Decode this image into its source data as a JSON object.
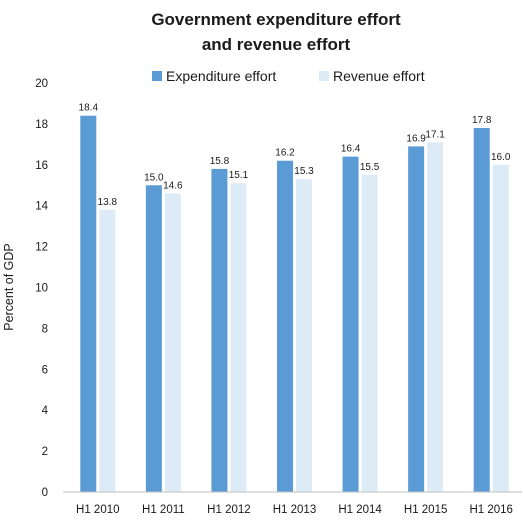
{
  "chart_data": {
    "type": "bar",
    "title_lines": [
      "Government expenditure effort",
      "and revenue effort"
    ],
    "xlabel": "",
    "ylabel": "Percent of GDP",
    "ylim": [
      0,
      20
    ],
    "y_ticks": [
      0,
      2,
      4,
      6,
      8,
      10,
      12,
      14,
      16,
      18,
      20
    ],
    "grid": false,
    "legend_position": "top-center",
    "categories": [
      "H1 2010",
      "H1 2011",
      "H1 2012",
      "H1 2013",
      "H1 2014",
      "H1 2015",
      "H1 2016"
    ],
    "series": [
      {
        "name": "Expenditure effort",
        "color": "#5b9bd5",
        "values": [
          18.4,
          15.0,
          15.8,
          16.2,
          16.4,
          16.9,
          17.8
        ],
        "labels": [
          "18.4",
          "15.0",
          "15.8",
          "16.2",
          "16.4",
          "16.9",
          "17.8"
        ]
      },
      {
        "name": "Revenue effort",
        "color": "#ddebf7",
        "values": [
          13.8,
          14.6,
          15.1,
          15.3,
          15.5,
          17.1,
          16.0
        ],
        "labels": [
          "13.8",
          "14.6",
          "15.1",
          "15.3",
          "15.5",
          "17.1",
          "16.0"
        ]
      }
    ]
  }
}
